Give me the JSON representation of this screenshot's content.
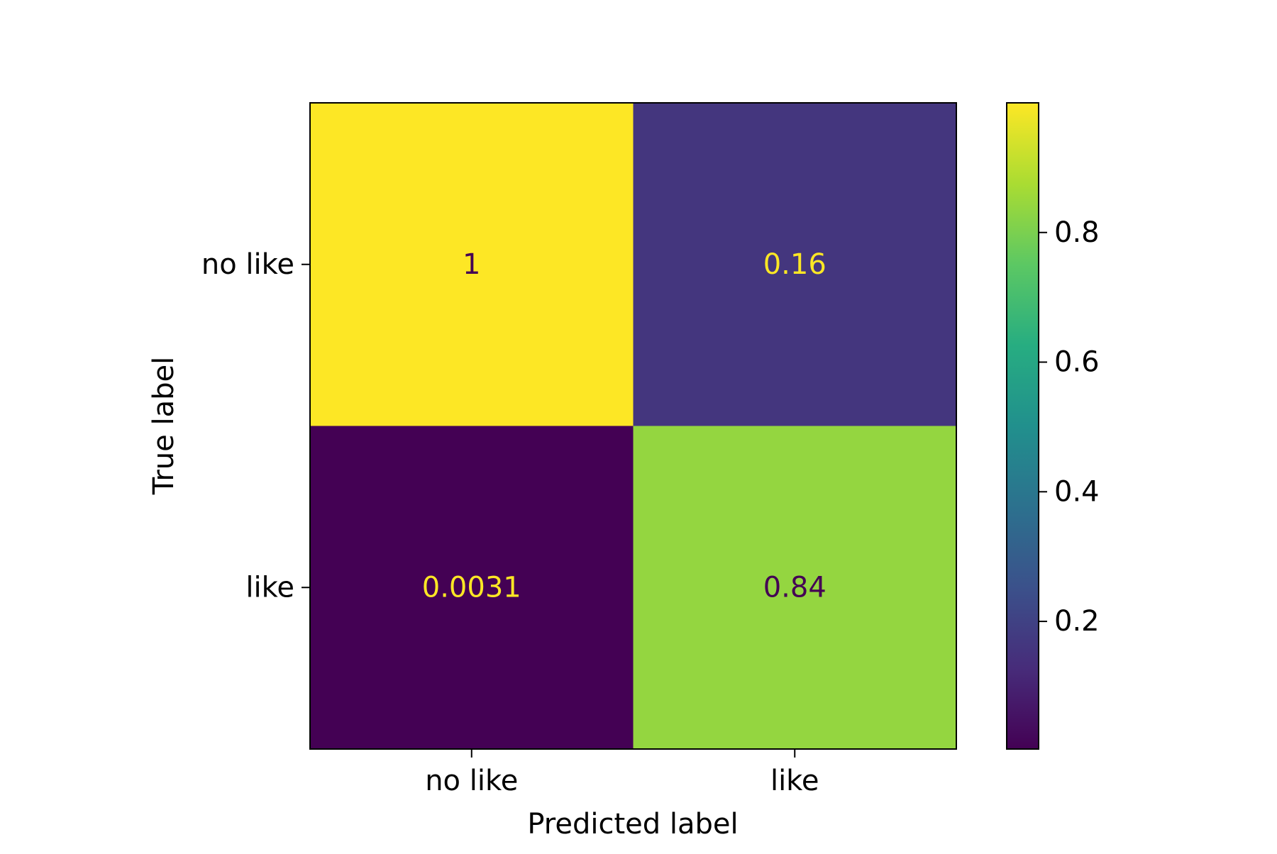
{
  "chart_data": {
    "type": "heatmap",
    "title": "",
    "xlabel": "Predicted label",
    "ylabel": "True label",
    "x_categories": [
      "no like",
      "like"
    ],
    "y_categories": [
      "no like",
      "like"
    ],
    "values": [
      [
        1.0,
        0.16
      ],
      [
        0.0031,
        0.84
      ]
    ],
    "value_labels": [
      [
        "1",
        "0.16"
      ],
      [
        "0.0031",
        "0.84"
      ]
    ],
    "colormap": "viridis",
    "colorbar": {
      "range": [
        0.0031,
        1.0
      ],
      "ticks": [
        0.2,
        0.4,
        0.6,
        0.8
      ],
      "tick_labels": [
        "0.2",
        "0.4",
        "0.6",
        "0.8"
      ]
    },
    "annotation_colors": {
      "on_dark": "#fde725",
      "on_light": "#440154"
    },
    "grid": false,
    "legend": "colorbar-right"
  }
}
